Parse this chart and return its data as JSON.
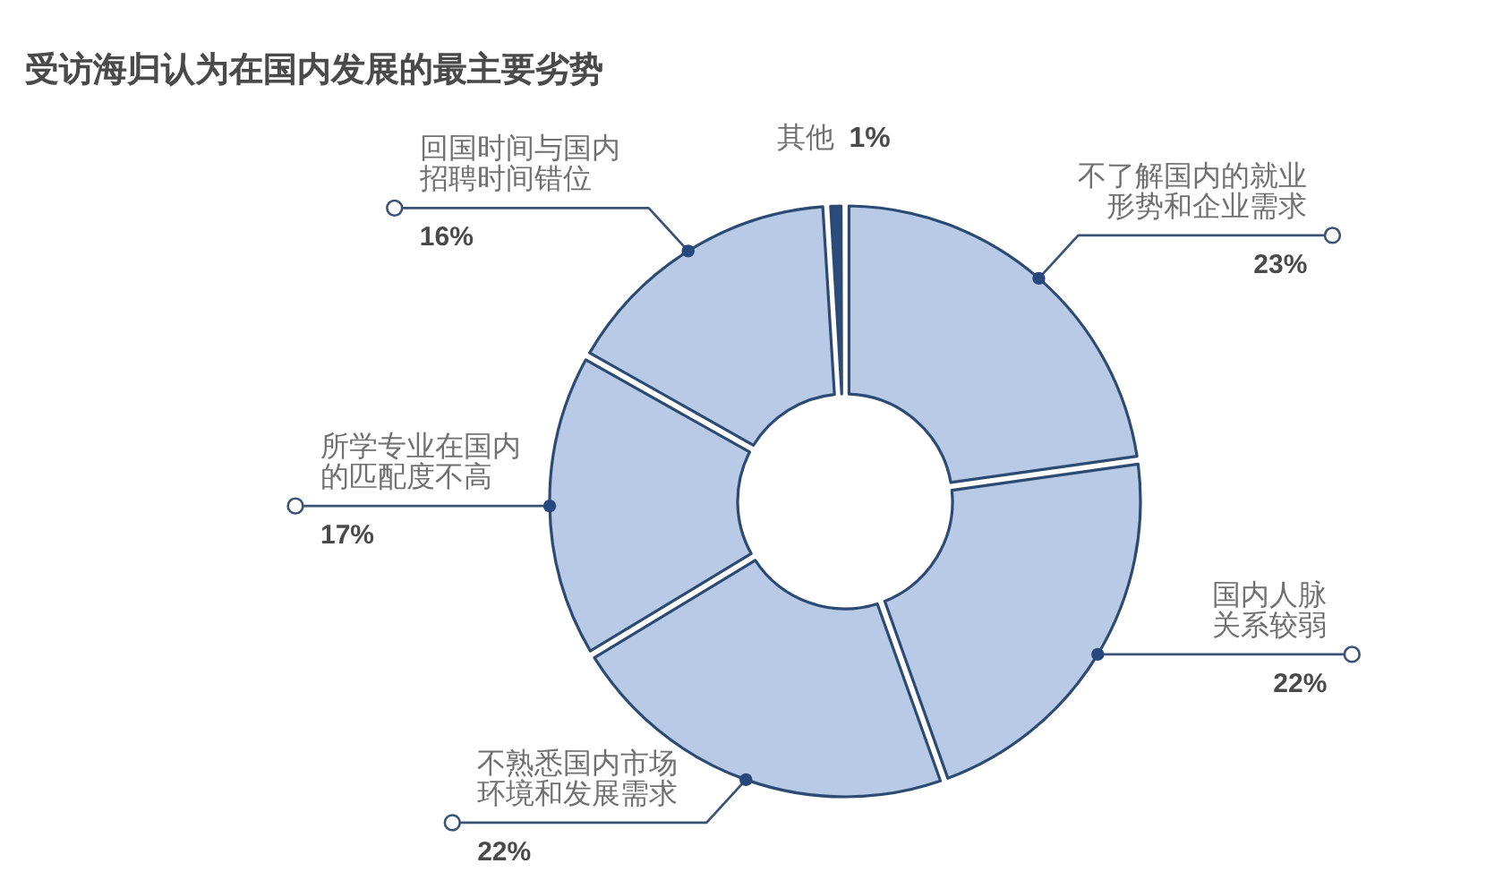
{
  "chart_data": {
    "type": "donut",
    "title": "受访海归认为在国内发展的最主要劣势",
    "categories": [
      "不了解国内的就业形势和企业需求",
      "国内人脉关系较弱",
      "不熟悉国内市场环境和发展需求",
      "所学专业在国内的匹配度不高",
      "回国时间与国内招聘时间错位",
      "其他"
    ],
    "values": [
      23,
      22,
      22,
      17,
      16,
      1
    ],
    "colors": [
      "#b8cae5",
      "#b8cae5",
      "#b8cae5",
      "#b8cae5",
      "#b8cae5",
      "#2b4c7e"
    ],
    "value_labels": [
      "23%",
      "22%",
      "22%",
      "17%",
      "16%",
      "1%"
    ]
  }
}
